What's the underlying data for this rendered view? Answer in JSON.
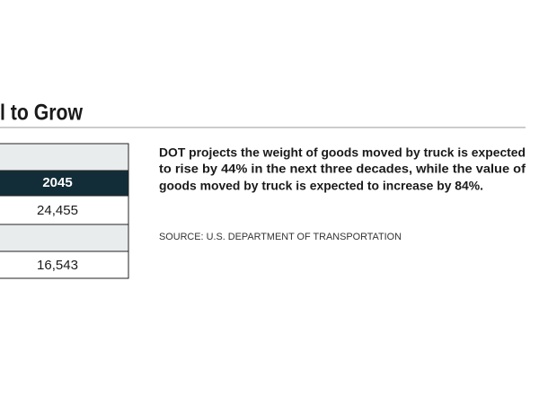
{
  "header": {
    "title": "l to Grow"
  },
  "table": {
    "header": "2045",
    "rows": [
      "24,455",
      "16,543"
    ]
  },
  "description": {
    "lines": [
      "DOT projects the weight of goods moved by truck is expected",
      "to rise by 44% in the next three decades, while the value of",
      "goods moved by truck is expected to increase by 84%."
    ]
  },
  "source": "SOURCE: U.S. DEPARTMENT OF TRANSPORTATION"
}
